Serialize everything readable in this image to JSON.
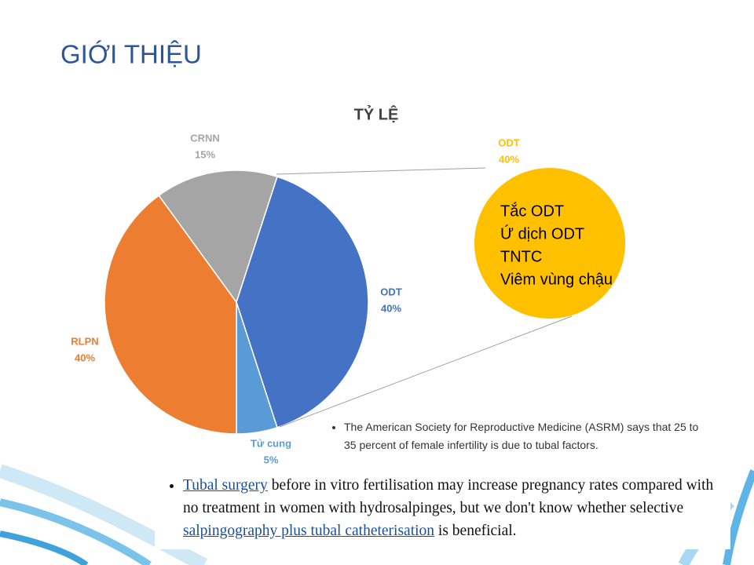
{
  "title": "GIỚI THIỆU",
  "chart_data": {
    "type": "pie",
    "title": "TỶ LỆ",
    "categories": [
      "ODT",
      "Tử cung",
      "RLPN",
      "CRNN"
    ],
    "values": [
      40,
      5,
      40,
      15
    ],
    "value_labels": [
      "40%",
      "5%",
      "40%",
      "15%"
    ],
    "colors": [
      "#4472c4",
      "#5b9bd5",
      "#ed7d31",
      "#a5a5a5"
    ]
  },
  "callout": {
    "color": "#ffc000",
    "lines": [
      "Tắc ODT",
      "Ứ dịch ODT",
      "TNTC",
      "Viêm vùng chậu"
    ]
  },
  "notes": [
    {
      "parts": [
        "The American Society for Reproductive Medicine (ASRM) says that 25 to 35 percent of female infertility is due to tubal factors."
      ]
    },
    {
      "parts": [
        "Tubal surgery",
        " before in vitro fertilisation may increase pregnancy rates compared with no treatment in women with hydrosalpinges, but we don't know whether selective ",
        "salpingography plus tubal catheterisation",
        " is beneficial."
      ]
    }
  ]
}
